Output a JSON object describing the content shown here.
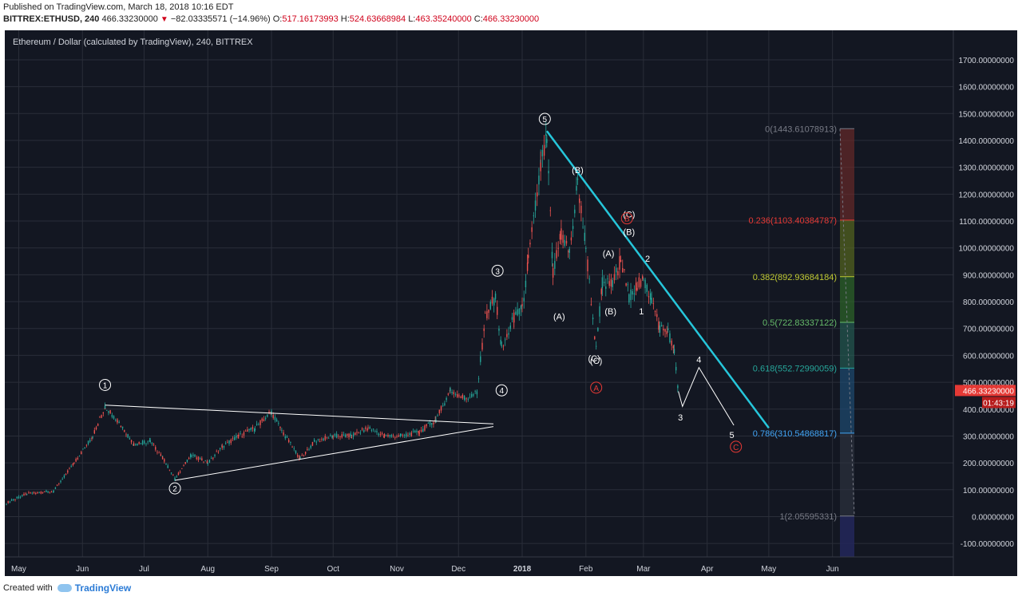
{
  "header": {
    "published": "Published on TradingView.com, March 18, 2018 10:16 EDT",
    "symbol": "BITTREX:ETHUSD, 240",
    "last": "466.33230000",
    "change": "−82.03335571 (−14.96%)",
    "o_label": "O:",
    "o": "517.16173993",
    "h_label": "H:",
    "h": "524.63668984",
    "l_label": "L:",
    "l": "463.35240000",
    "c_label": "C:",
    "c": "466.33230000"
  },
  "footer": {
    "created_with": "Created with",
    "brand": "TradingView"
  },
  "colors": {
    "bg": "#131722",
    "grid": "#2a2e39",
    "axis_text": "#d1d4dc",
    "trend": "#26c6da",
    "wave": "#ffffff",
    "red_label": "#e53935",
    "price_tag": "#e53935"
  },
  "chart_data": {
    "type": "line",
    "title": "Ethereum / Dollar (calculated by TradingView), 240, BITTREX",
    "x_ticks": [
      "May",
      "Jun",
      "Jul",
      "Aug",
      "Sep",
      "Oct",
      "Nov",
      "Dec",
      "2018",
      "Feb",
      "Mar",
      "Apr",
      "May",
      "Jun"
    ],
    "y_ticks": [
      "1700.00000000",
      "1600.00000000",
      "1500.00000000",
      "1400.00000000",
      "1300.00000000",
      "1200.00000000",
      "1100.00000000",
      "1000.00000000",
      "900.00000000",
      "800.00000000",
      "700.00000000",
      "600.00000000",
      "500.00000000",
      "400.00000000",
      "300.00000000",
      "200.00000000",
      "100.00000000",
      "0.00000000",
      "-100.00000000"
    ],
    "ylim": [
      -150,
      1780
    ],
    "price_tag": {
      "value": "466.33230000",
      "countdown": "01:43:19"
    },
    "series": [
      {
        "values": [
          [
            "2017-04-25",
            50
          ],
          [
            "2017-05-05",
            85
          ],
          [
            "2017-05-18",
            95
          ],
          [
            "2017-05-28",
            200
          ],
          [
            "2017-06-06",
            300
          ],
          [
            "2017-06-12",
            410
          ],
          [
            "2017-06-18",
            360
          ],
          [
            "2017-06-26",
            270
          ],
          [
            "2017-07-04",
            280
          ],
          [
            "2017-07-10",
            220
          ],
          [
            "2017-07-16",
            140
          ],
          [
            "2017-07-24",
            230
          ],
          [
            "2017-08-01",
            200
          ],
          [
            "2017-08-08",
            260
          ],
          [
            "2017-08-16",
            300
          ],
          [
            "2017-08-24",
            330
          ],
          [
            "2017-09-01",
            390
          ],
          [
            "2017-09-06",
            320
          ],
          [
            "2017-09-15",
            215
          ],
          [
            "2017-09-22",
            280
          ],
          [
            "2017-10-01",
            300
          ],
          [
            "2017-10-10",
            300
          ],
          [
            "2017-10-18",
            330
          ],
          [
            "2017-10-26",
            300
          ],
          [
            "2017-11-03",
            300
          ],
          [
            "2017-11-12",
            315
          ],
          [
            "2017-11-20",
            360
          ],
          [
            "2017-11-27",
            470
          ],
          [
            "2017-12-04",
            440
          ],
          [
            "2017-12-10",
            460
          ],
          [
            "2017-12-14",
            740
          ],
          [
            "2017-12-19",
            820
          ],
          [
            "2017-12-22",
            620
          ],
          [
            "2017-12-28",
            740
          ],
          [
            "2018-01-01",
            770
          ],
          [
            "2018-01-04",
            950
          ],
          [
            "2018-01-10",
            1300
          ],
          [
            "2018-01-13",
            1400
          ],
          [
            "2018-01-16",
            900
          ],
          [
            "2018-01-20",
            1050
          ],
          [
            "2018-01-24",
            980
          ],
          [
            "2018-01-28",
            1240
          ],
          [
            "2018-02-01",
            1000
          ],
          [
            "2018-02-06",
            620
          ],
          [
            "2018-02-09",
            870
          ],
          [
            "2018-02-14",
            860
          ],
          [
            "2018-02-18",
            960
          ],
          [
            "2018-02-22",
            820
          ],
          [
            "2018-02-26",
            860
          ],
          [
            "2018-03-01",
            880
          ],
          [
            "2018-03-05",
            810
          ],
          [
            "2018-03-09",
            700
          ],
          [
            "2018-03-13",
            690
          ],
          [
            "2018-03-16",
            610
          ],
          [
            "2018-03-18",
            466
          ]
        ]
      }
    ],
    "fib_levels": [
      {
        "label": "0(1443.61078913)",
        "value": 1443.61,
        "color": "#787b86"
      },
      {
        "label": "0.236(1103.40384787)",
        "value": 1103.4,
        "color": "#e53935"
      },
      {
        "label": "0.382(892.93684184)",
        "value": 892.94,
        "color": "#c0ca33"
      },
      {
        "label": "0.5(722.83337122)",
        "value": 722.83,
        "color": "#66bb6a"
      },
      {
        "label": "0.618(552.72990059)",
        "value": 552.73,
        "color": "#26a69a"
      },
      {
        "label": "0.786(310.54868817)",
        "value": 310.55,
        "color": "#42a5f5"
      },
      {
        "label": "1(2.05595331)",
        "value": 2.06,
        "color": "#787b86"
      }
    ],
    "wave_labels": [
      {
        "text": "1",
        "style": "circle"
      },
      {
        "text": "2",
        "style": "circle"
      },
      {
        "text": "3",
        "style": "circle"
      },
      {
        "text": "4",
        "style": "circle"
      },
      {
        "text": "5",
        "style": "circle"
      },
      {
        "text": "(A)",
        "style": "plain"
      },
      {
        "text": "(B)",
        "style": "plain"
      },
      {
        "text": "(C)",
        "style": "plain"
      },
      {
        "text": "(A)",
        "style": "plain"
      },
      {
        "text": "(B)",
        "style": "plain"
      },
      {
        "text": "(C)",
        "style": "plain"
      },
      {
        "text": "(B)",
        "style": "plain"
      },
      {
        "text": "(C)",
        "style": "plain"
      },
      {
        "text": "A",
        "style": "red-circle"
      },
      {
        "text": "B",
        "style": "red-circle"
      },
      {
        "text": "C",
        "style": "red-circle"
      },
      {
        "text": "1",
        "style": "plain"
      },
      {
        "text": "2",
        "style": "plain"
      },
      {
        "text": "3",
        "style": "plain"
      },
      {
        "text": "4",
        "style": "plain"
      },
      {
        "text": "5",
        "style": "plain"
      }
    ]
  }
}
